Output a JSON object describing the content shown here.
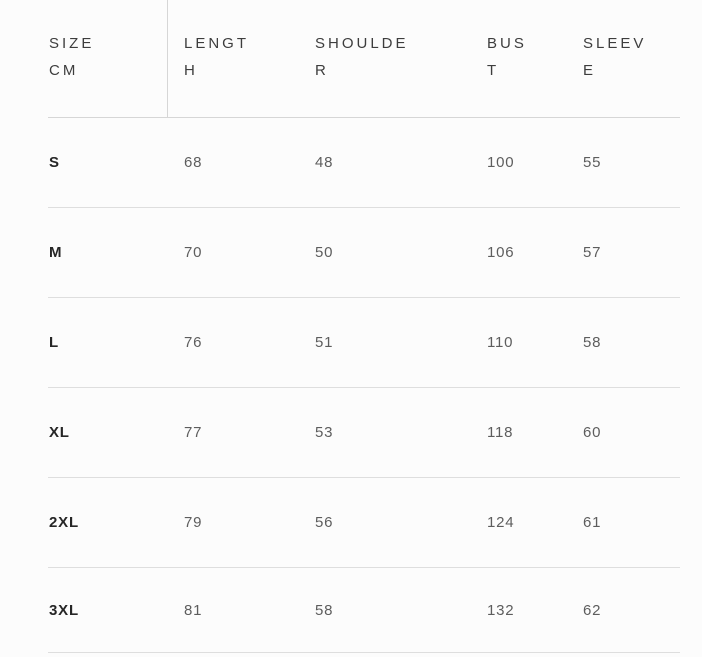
{
  "size_chart": {
    "columns": [
      {
        "id": "size",
        "label": "SIZE\nCM"
      },
      {
        "id": "length",
        "label": "LENGT\nH"
      },
      {
        "id": "shoulder",
        "label": "SHOULDE\nR"
      },
      {
        "id": "bust",
        "label": "BUS\nT"
      },
      {
        "id": "sleeve",
        "label": "SLEEV\nE"
      }
    ],
    "rows": [
      {
        "size": "S",
        "length": "68",
        "shoulder": "48",
        "bust": "100",
        "sleeve": "55"
      },
      {
        "size": "M",
        "length": "70",
        "shoulder": "50",
        "bust": "106",
        "sleeve": "57"
      },
      {
        "size": "L",
        "length": "76",
        "shoulder": "51",
        "bust": "110",
        "sleeve": "58"
      },
      {
        "size": "XL",
        "length": "77",
        "shoulder": "53",
        "bust": "118",
        "sleeve": "60"
      },
      {
        "size": "2XL",
        "length": "79",
        "shoulder": "56",
        "bust": "124",
        "sleeve": "61"
      },
      {
        "size": "3XL",
        "length": "81",
        "shoulder": "58",
        "bust": "132",
        "sleeve": "62"
      }
    ],
    "colors": {
      "background": "#fcfcfc",
      "header_text": "#3d3d3d",
      "size_label_text": "#262626",
      "value_text": "#5d5d5d",
      "divider_line": "#d6d6d6",
      "row_line": "#dedede"
    }
  }
}
